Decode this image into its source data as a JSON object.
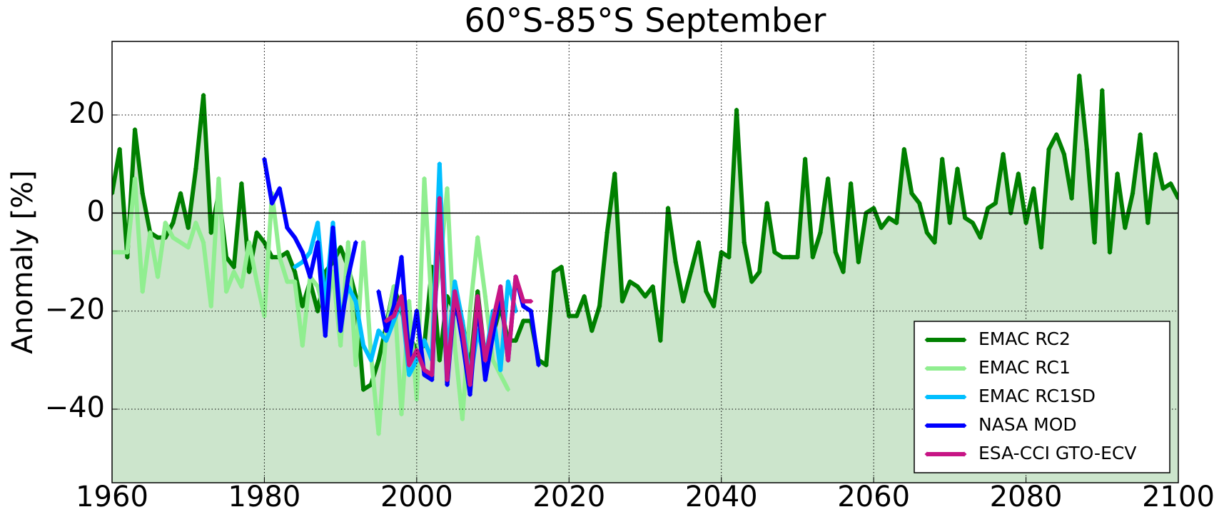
{
  "chart_data": {
    "type": "line",
    "title": "60°S-85°S September",
    "y_label": "Anomaly [%]",
    "xlim": [
      1960,
      2100
    ],
    "xticks": [
      1960,
      1980,
      2000,
      2020,
      2040,
      2060,
      2080,
      2100
    ],
    "ylim": [
      -55,
      35
    ],
    "yticks": [
      {
        "value": -40,
        "label": "−40"
      },
      {
        "value": -20,
        "label": "−20"
      },
      0,
      20
    ],
    "grid": true,
    "legend_position": "lower right",
    "series": [
      {
        "name": "EMAC RC2",
        "color": "#008000",
        "fill": "#cce5cc",
        "x": [
          1960,
          1961,
          1962,
          1963,
          1964,
          1965,
          1966,
          1967,
          1968,
          1969,
          1970,
          1971,
          1972,
          1973,
          1974,
          1975,
          1976,
          1977,
          1978,
          1979,
          1980,
          1981,
          1982,
          1983,
          1984,
          1985,
          1986,
          1987,
          1988,
          1989,
          1990,
          1991,
          1992,
          1993,
          1994,
          1995,
          1996,
          1997,
          1998,
          1999,
          2000,
          2001,
          2002,
          2003,
          2004,
          2005,
          2006,
          2007,
          2008,
          2009,
          2010,
          2011,
          2012,
          2013,
          2014,
          2015,
          2016,
          2017,
          2018,
          2019,
          2020,
          2021,
          2022,
          2023,
          2024,
          2025,
          2026,
          2027,
          2028,
          2029,
          2030,
          2031,
          2032,
          2033,
          2034,
          2035,
          2036,
          2037,
          2038,
          2039,
          2040,
          2041,
          2042,
          2043,
          2044,
          2045,
          2046,
          2047,
          2048,
          2049,
          2050,
          2051,
          2052,
          2053,
          2054,
          2055,
          2056,
          2057,
          2058,
          2059,
          2060,
          2061,
          2062,
          2063,
          2064,
          2065,
          2066,
          2067,
          2068,
          2069,
          2070,
          2071,
          2072,
          2073,
          2074,
          2075,
          2076,
          2077,
          2078,
          2079,
          2080,
          2081,
          2082,
          2083,
          2084,
          2085,
          2086,
          2087,
          2088,
          2089,
          2090,
          2091,
          2092,
          2093,
          2094,
          2095,
          2096,
          2097,
          2098,
          2099,
          2100
        ],
        "values": [
          4,
          13,
          -9,
          17,
          4,
          -4,
          -5,
          -5,
          -2,
          4,
          -3,
          9,
          24,
          -4,
          4,
          -9,
          -11,
          6,
          -12,
          -4,
          -6,
          -9,
          -9,
          -8,
          -12,
          -19,
          -14,
          -20,
          -12,
          -10,
          -7,
          -11,
          -17,
          -36,
          -35,
          -30,
          -23,
          -15,
          -20,
          -25,
          -28,
          -27,
          -11,
          -30,
          -17,
          -20,
          -22,
          -32,
          -16,
          -30,
          -25,
          -19,
          -26,
          -26,
          -22,
          -22,
          -30,
          -31,
          -12,
          -11,
          -21,
          -21,
          -17,
          -24,
          -19,
          -4,
          8,
          -18,
          -14,
          -15,
          -17,
          -15,
          -26,
          1,
          -10,
          -18,
          -12,
          -6,
          -16,
          -19,
          -8,
          -9,
          21,
          -6,
          -14,
          -12,
          2,
          -8,
          -9,
          -9,
          -9,
          11,
          -9,
          -4,
          7,
          -8,
          -12,
          6,
          -10,
          0,
          1,
          -3,
          -1,
          -2,
          13,
          4,
          2,
          -4,
          -6,
          11,
          -2,
          9,
          -1,
          -2,
          -5,
          1,
          2,
          12,
          0,
          8,
          -2,
          5,
          -7,
          13,
          16,
          12,
          3,
          28,
          13,
          -6,
          25,
          -8,
          8,
          -3,
          4,
          16,
          -2,
          12,
          5,
          6,
          3
        ]
      },
      {
        "name": "EMAC RC1",
        "color": "#90ee90",
        "x": [
          1960,
          1961,
          1962,
          1963,
          1964,
          1965,
          1966,
          1967,
          1968,
          1969,
          1970,
          1971,
          1972,
          1973,
          1974,
          1975,
          1976,
          1977,
          1978,
          1979,
          1980,
          1981,
          1982,
          1983,
          1984,
          1985,
          1986,
          1987,
          1988,
          1989,
          1990,
          1991,
          1992,
          1993,
          1994,
          1995,
          1996,
          1997,
          1998,
          1999,
          2000,
          2001,
          2002,
          2003,
          2004,
          2005,
          2006,
          2007,
          2008,
          2009,
          2010,
          2011,
          2012
        ],
        "values": [
          -8,
          -8,
          -8,
          7,
          -16,
          -4,
          -13,
          -2,
          -5,
          -6,
          -7,
          -2,
          -6,
          -19,
          7,
          -16,
          -12,
          -15,
          -6,
          -14,
          -21,
          4,
          -9,
          -14,
          -14,
          -27,
          -13,
          -15,
          -21,
          -12,
          -27,
          -6,
          -31,
          -6,
          -29,
          -45,
          -24,
          -15,
          -41,
          -18,
          -38,
          7,
          -20,
          -12,
          5,
          -27,
          -42,
          -20,
          -5,
          -17,
          -30,
          -33,
          -36
        ]
      },
      {
        "name": "EMAC RC1SD",
        "color": "#00bfff",
        "x": [
          1984,
          1985,
          1986,
          1987,
          1988,
          1989,
          1990,
          1991,
          1992,
          1993,
          1994,
          1995,
          1996,
          1997,
          1998,
          1999,
          2000,
          2001,
          2002,
          2003,
          2004,
          2005,
          2006,
          2007,
          2008,
          2009,
          2010,
          2011,
          2012,
          2013
        ],
        "values": [
          -11,
          -10,
          -8,
          -2,
          -19,
          -2,
          -22,
          -15,
          -18,
          -27,
          -30,
          -24,
          -26,
          -22,
          -18,
          -33,
          -30,
          -26,
          -30,
          10,
          -30,
          -14,
          -22,
          -34,
          -24,
          -30,
          -20,
          -32,
          -14,
          -20
        ]
      },
      {
        "name": "NASA MOD",
        "color": "#0000ff",
        "x": [
          1980,
          1981,
          1982,
          1983,
          1984,
          1985,
          1986,
          1987,
          1988,
          1989,
          1990,
          1991,
          1992,
          1993,
          1994,
          1995,
          1996,
          1997,
          1998,
          1999,
          2000,
          2001,
          2002,
          2003,
          2004,
          2005,
          2006,
          2007,
          2008,
          2009,
          2010,
          2011,
          2012,
          2013,
          2014,
          2015,
          2016
        ],
        "values": [
          11,
          2,
          5,
          -3,
          -5,
          -8,
          -13,
          -6,
          -25,
          -3,
          -24,
          -13,
          -6,
          null,
          null,
          -16,
          -24,
          -19,
          -9,
          -30,
          -20,
          -33,
          -34,
          2,
          -35,
          -17,
          -26,
          -37,
          -18,
          -34,
          -25,
          -16,
          -30,
          -13,
          -19,
          -20,
          -31
        ]
      },
      {
        "name": "ESA-CCI GTO-ECV",
        "color": "#c71585",
        "x": [
          1996,
          1997,
          1998,
          1999,
          2000,
          2001,
          2002,
          2003,
          2004,
          2005,
          2006,
          2007,
          2008,
          2009,
          2010,
          2011,
          2012,
          2013,
          2014,
          2015
        ],
        "values": [
          -22,
          -21,
          -17,
          -31,
          -28,
          -32,
          -33,
          3,
          -34,
          -16,
          -24,
          -35,
          -17,
          -30,
          -22,
          -15,
          -30,
          -13,
          -18,
          -18
        ]
      }
    ]
  }
}
